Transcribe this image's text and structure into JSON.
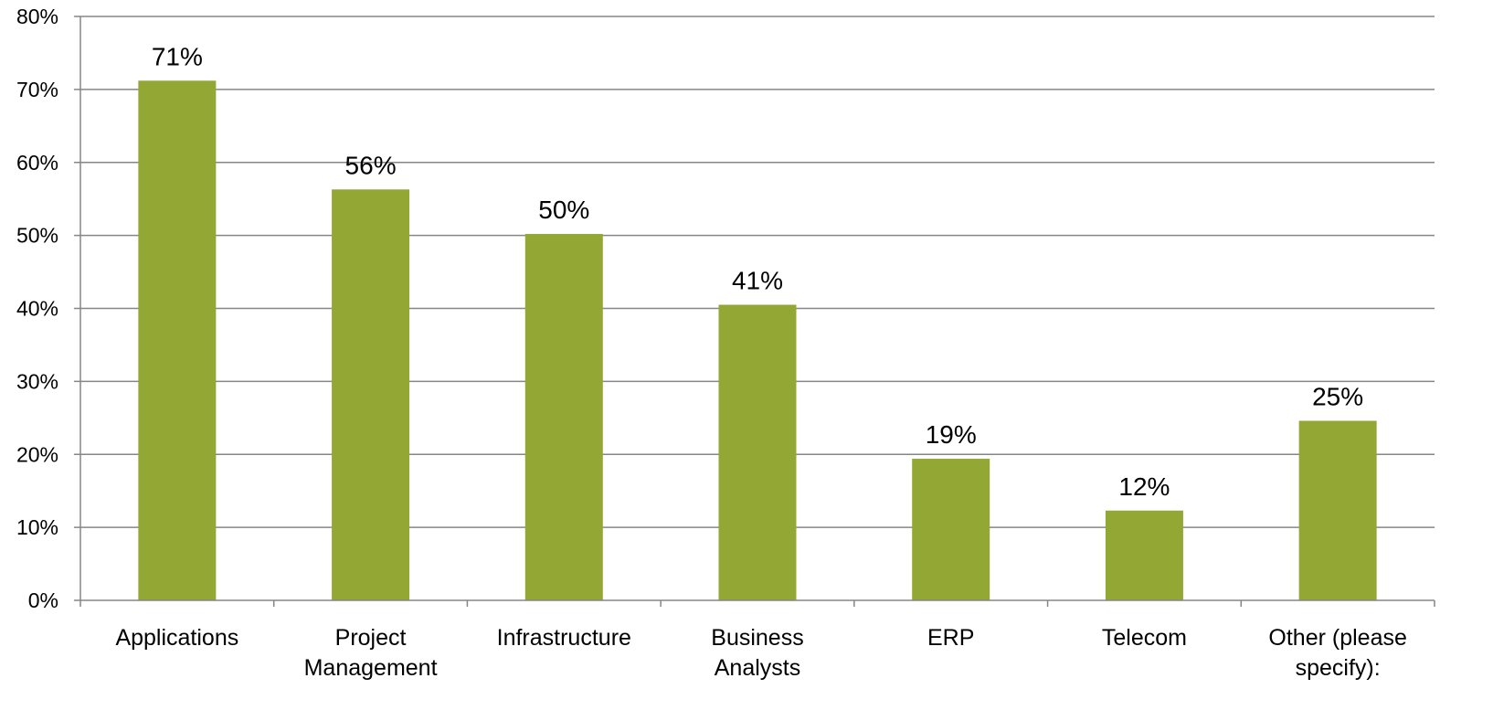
{
  "chart_data": {
    "type": "bar",
    "categories": [
      [
        "Applications"
      ],
      [
        "Project",
        "Management"
      ],
      [
        "Infrastructure"
      ],
      [
        "Business",
        "Analysts"
      ],
      [
        "ERP"
      ],
      [
        "Telecom"
      ],
      [
        "Other (please",
        "specify):"
      ]
    ],
    "values": [
      71.2,
      56.3,
      50.2,
      40.5,
      19.4,
      12.3,
      24.6
    ],
    "data_labels": [
      "71%",
      "56%",
      "50%",
      "41%",
      "19%",
      "12%",
      "25%"
    ],
    "y_ticks": [
      "0%",
      "10%",
      "20%",
      "30%",
      "40%",
      "50%",
      "60%",
      "70%",
      "80%"
    ],
    "ylim": [
      0,
      80
    ],
    "grid": true,
    "legend": "none",
    "colors": {
      "bar": "#93A834",
      "grid": "#868686",
      "axis": "#868686"
    }
  }
}
